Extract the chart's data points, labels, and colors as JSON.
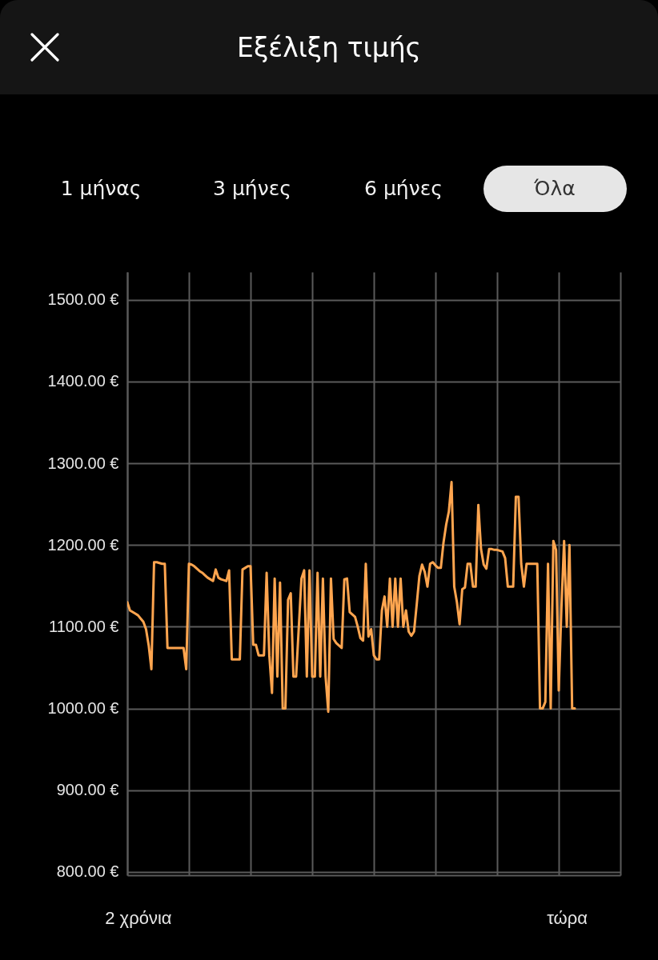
{
  "chart_data": {
    "type": "line",
    "title": "Εξέλιξη τιμής",
    "annotations": [
      "1 μήνας",
      "3 μήνες",
      "6 μήνες",
      "Όλα"
    ],
    "categories": [
      null,
      null,
      null,
      null,
      "2 χρόνια",
      null,
      null,
      null,
      null,
      null,
      null,
      null,
      null,
      null,
      null,
      null,
      null,
      null,
      null,
      null,
      null,
      null,
      null,
      null,
      null,
      null,
      null,
      null,
      null,
      null,
      null,
      null,
      null,
      null,
      null,
      null,
      null,
      null,
      null,
      null,
      null,
      null,
      null,
      null,
      null,
      null,
      null,
      null,
      null,
      null,
      null,
      null,
      null,
      null,
      null,
      null,
      null,
      null,
      null,
      null,
      null,
      null,
      null,
      null,
      null,
      null,
      null,
      null,
      null,
      null,
      null,
      null,
      null,
      null,
      null,
      null,
      null,
      null,
      null,
      null,
      null,
      null,
      null,
      null,
      null,
      null,
      null,
      null,
      null,
      null,
      null,
      null,
      null,
      null,
      null,
      null,
      null,
      null,
      null,
      null,
      null,
      null,
      null,
      null,
      null,
      null,
      null,
      null,
      null,
      null,
      null,
      null,
      null,
      null,
      null,
      null,
      null,
      null,
      null,
      null,
      null,
      null,
      null,
      null,
      null,
      null,
      null,
      null,
      null,
      null,
      null,
      null,
      null,
      null,
      null,
      null,
      null,
      null,
      null,
      null,
      null,
      null,
      null,
      null,
      null,
      null,
      null,
      null,
      null,
      null,
      null,
      null,
      null,
      null,
      null,
      null,
      null,
      null,
      null,
      null,
      null,
      null,
      null,
      null,
      "τώρα",
      null,
      null,
      null,
      null,
      null,
      null,
      null,
      null,
      null,
      null,
      null,
      null,
      null,
      null,
      null,
      null,
      null,
      null,
      null,
      null
    ],
    "series": [
      {
        "color": "#ffa54f",
        "values": [
          1130,
          1120,
          1118,
          1116,
          1114,
          1110,
          1106,
          1097,
          1077,
          1048,
          1179,
          1179,
          1178,
          1177,
          1177,
          1074,
          1074,
          1074,
          1074,
          1074,
          1074,
          1074,
          1048,
          1177,
          1176,
          1174,
          1171,
          1168,
          1166,
          1163,
          1160,
          1158,
          1156,
          1170,
          1160,
          1158,
          1157,
          1156,
          1169,
          1060,
          1060,
          1060,
          1060,
          1170,
          1172,
          1174,
          1174,
          1078,
          1078,
          1065,
          1065,
          1065,
          1166,
          1065,
          1019,
          1159,
          1039,
          1154,
          1000,
          1000,
          1133,
          1141,
          1039,
          1039,
          1099,
          1159,
          1169,
          1039,
          1169,
          1039,
          1039,
          1166,
          1039,
          1159,
          1039,
          996,
          1159,
          1085,
          1080,
          1077,
          1074,
          1158,
          1159,
          1118,
          1115,
          1112,
          1100,
          1086,
          1083,
          1177,
          1088,
          1097,
          1065,
          1060,
          1060,
          1120,
          1137,
          1100,
          1159,
          1100,
          1159,
          1100,
          1159,
          1100,
          1120,
          1094,
          1089,
          1094,
          1127,
          1162,
          1176,
          1167,
          1149,
          1177,
          1179,
          1175,
          1172,
          1172,
          1203,
          1225,
          1241,
          1277,
          1149,
          1130,
          1103,
          1146,
          1148,
          1177,
          1177,
          1149,
          1149,
          1249,
          1195,
          1176,
          1171,
          1195,
          1195,
          1194,
          1194,
          1193,
          1192,
          1184,
          1149,
          1149,
          1149,
          1259,
          1259,
          1177,
          1149,
          1177,
          1177,
          1177,
          1177,
          1177,
          1000,
          1000,
          1008,
          1177,
          1000,
          1205,
          1194,
          1022,
          1123,
          1205,
          1100,
          1200,
          1000,
          1000,
          null,
          null,
          null,
          null,
          null,
          null,
          null,
          null,
          null,
          null,
          null,
          null,
          null,
          null,
          null,
          null,
          null
        ]
      }
    ],
    "ylim": [
      796,
      1534
    ],
    "yticks": [
      {
        "value": 800,
        "label": "800.00 €"
      },
      {
        "value": 900,
        "label": "900.00 €"
      },
      {
        "value": 1000,
        "label": "1000.00 €"
      },
      {
        "value": 1100,
        "label": "1100.00 €"
      },
      {
        "value": 1200,
        "label": "1200.00 €"
      },
      {
        "value": 1300,
        "label": "1300.00 €"
      },
      {
        "value": 1400,
        "label": "1400.00 €"
      },
      {
        "value": 1500,
        "label": "1500.00 €"
      }
    ],
    "grid": true
  }
}
